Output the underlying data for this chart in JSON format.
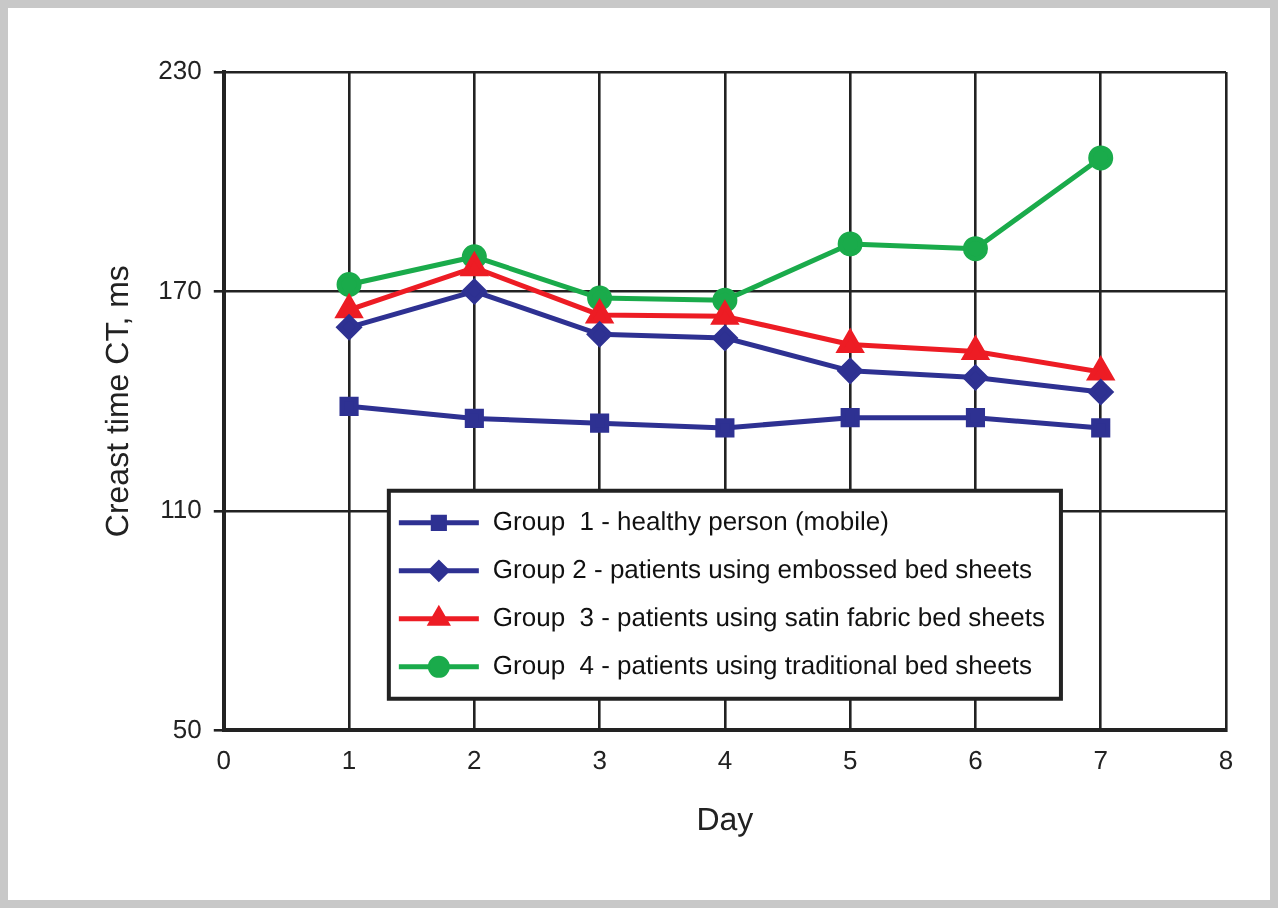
{
  "chart_data": {
    "type": "line",
    "xlabel": "Day",
    "ylabel": "Creast time CT, ms",
    "x": [
      1,
      2,
      3,
      4,
      5,
      6,
      7
    ],
    "series": [
      {
        "name": "Group  1 - healthy person (mobile)",
        "color": "#2e3192",
        "marker": "square",
        "values": [
          138.6,
          135.3,
          134,
          132.7,
          135.5,
          135.5,
          132.7
        ]
      },
      {
        "name": "Group 2 - patients using embossed bed sheets",
        "color": "#2e3192",
        "marker": "diamond",
        "values": [
          160.2,
          170,
          158.3,
          157.3,
          148.3,
          146.5,
          142.5
        ]
      },
      {
        "name": "Group  3 - patients using satin fabric bed sheets",
        "color": "#ed1c24",
        "marker": "triangle",
        "values": [
          165,
          176.5,
          163.6,
          163.2,
          155.5,
          153.6,
          148
        ]
      },
      {
        "name": "Group  4 - patients using traditional bed sheets",
        "color": "#1aab4b",
        "marker": "circle",
        "values": [
          171.9,
          179.5,
          168.2,
          167.6,
          183,
          181.7,
          206.5
        ]
      }
    ],
    "xlim": [
      0,
      8
    ],
    "xticks": [
      0,
      1,
      2,
      3,
      4,
      5,
      6,
      7,
      8
    ],
    "ylim": [
      50,
      230
    ],
    "yticks": [
      50,
      110,
      170,
      230
    ],
    "grid": true,
    "legend": "bottom",
    "line_style": "solid"
  }
}
